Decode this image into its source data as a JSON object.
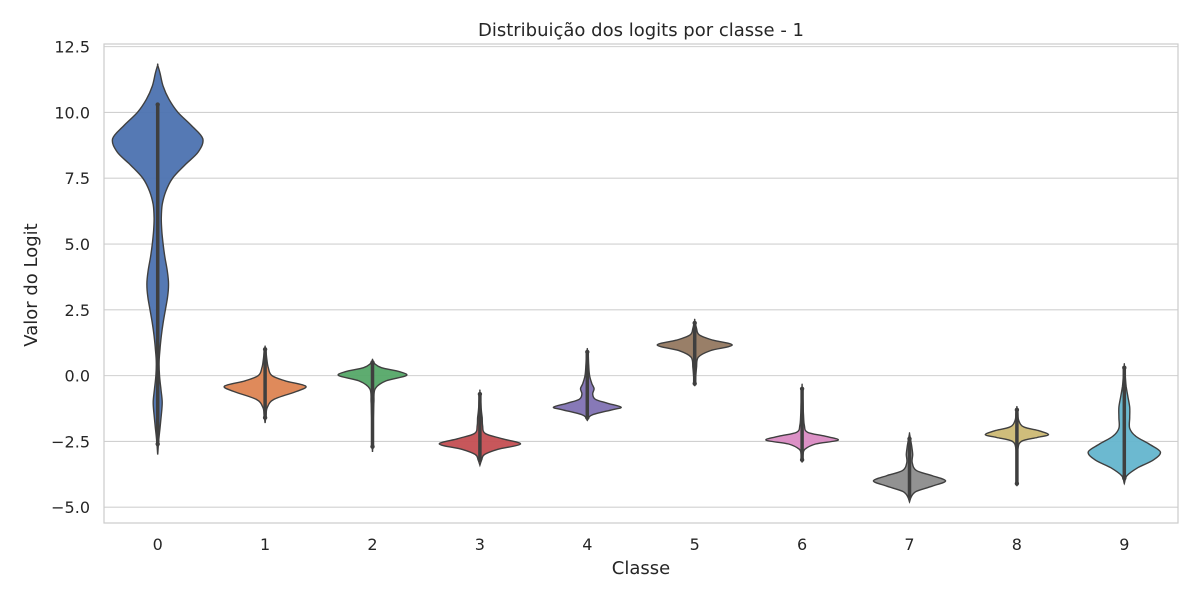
{
  "chart_data": {
    "type": "violin",
    "title": "Distribuição dos logits por classe - 1",
    "xlabel": "Classe",
    "ylabel": "Valor do Logit",
    "ylim": [
      -5.6,
      12.6
    ],
    "yticks": [
      -5.0,
      -2.5,
      0.0,
      2.5,
      5.0,
      7.5,
      10.0,
      12.5
    ],
    "ytick_labels": [
      "−5.0",
      "−2.5",
      "0.0",
      "2.5",
      "5.0",
      "7.5",
      "10.0",
      "12.5"
    ],
    "grid": true,
    "categories": [
      "0",
      "1",
      "2",
      "3",
      "4",
      "5",
      "6",
      "7",
      "8",
      "9"
    ],
    "colors": [
      "#4c72b0",
      "#dd8452",
      "#55a868",
      "#c44e52",
      "#8172b3",
      "#937860",
      "#da8bc3",
      "#8c8c8c",
      "#ccb974",
      "#64b5cd"
    ],
    "violins": [
      {
        "class": "0",
        "min": -3.0,
        "max": 11.8,
        "inner": [
          -2.6,
          10.3
        ],
        "density": [
          [
            -3.0,
            0
          ],
          [
            -2.5,
            0.02
          ],
          [
            -2.0,
            0.05
          ],
          [
            -1.5,
            0.08
          ],
          [
            -1.0,
            0.1
          ],
          [
            -0.5,
            0.07
          ],
          [
            0,
            0.04
          ],
          [
            0.5,
            0.03
          ],
          [
            1.0,
            0.05
          ],
          [
            1.5,
            0.08
          ],
          [
            2.0,
            0.12
          ],
          [
            2.5,
            0.17
          ],
          [
            3.0,
            0.22
          ],
          [
            3.5,
            0.24
          ],
          [
            4.0,
            0.21
          ],
          [
            4.5,
            0.16
          ],
          [
            5.0,
            0.12
          ],
          [
            5.5,
            0.09
          ],
          [
            6.0,
            0.08
          ],
          [
            6.5,
            0.1
          ],
          [
            7.0,
            0.18
          ],
          [
            7.5,
            0.33
          ],
          [
            8.0,
            0.6
          ],
          [
            8.5,
            0.9
          ],
          [
            9.0,
            1.0
          ],
          [
            9.5,
            0.75
          ],
          [
            10.0,
            0.45
          ],
          [
            10.5,
            0.25
          ],
          [
            11.0,
            0.12
          ],
          [
            11.5,
            0.05
          ],
          [
            11.8,
            0
          ]
        ]
      },
      {
        "class": "1",
        "min": -1.8,
        "max": 1.1,
        "inner": [
          -1.6,
          1.0
        ],
        "density": [
          [
            -1.8,
            0
          ],
          [
            -1.5,
            0.02
          ],
          [
            -1.2,
            0.05
          ],
          [
            -0.9,
            0.2
          ],
          [
            -0.6,
            0.7
          ],
          [
            -0.4,
            0.9
          ],
          [
            -0.2,
            0.45
          ],
          [
            0,
            0.15
          ],
          [
            0.3,
            0.07
          ],
          [
            0.6,
            0.04
          ],
          [
            0.9,
            0.02
          ],
          [
            1.1,
            0
          ]
        ]
      },
      {
        "class": "2",
        "min": -2.9,
        "max": 0.6,
        "inner": [
          -2.7,
          0.5
        ],
        "density": [
          [
            -2.9,
            0
          ],
          [
            -2.5,
            0.01
          ],
          [
            -2.0,
            0.01
          ],
          [
            -1.5,
            0.02
          ],
          [
            -1.0,
            0.03
          ],
          [
            -0.5,
            0.06
          ],
          [
            -0.2,
            0.3
          ],
          [
            0,
            0.75
          ],
          [
            0.15,
            0.6
          ],
          [
            0.3,
            0.2
          ],
          [
            0.45,
            0.05
          ],
          [
            0.6,
            0
          ]
        ]
      },
      {
        "class": "3",
        "min": -3.4,
        "max": -0.6,
        "inner": [
          -3.2,
          -0.7
        ],
        "density": [
          [
            -3.4,
            0
          ],
          [
            -3.2,
            0.04
          ],
          [
            -3.0,
            0.1
          ],
          [
            -2.8,
            0.4
          ],
          [
            -2.6,
            0.9
          ],
          [
            -2.4,
            0.5
          ],
          [
            -2.2,
            0.12
          ],
          [
            -1.9,
            0.06
          ],
          [
            -1.6,
            0.05
          ],
          [
            -1.3,
            0.03
          ],
          [
            -1.0,
            0.02
          ],
          [
            -0.6,
            0
          ]
        ]
      },
      {
        "class": "4",
        "min": -1.7,
        "max": 1.0,
        "inner": [
          -1.6,
          0.9
        ],
        "density": [
          [
            -1.7,
            0
          ],
          [
            -1.5,
            0.1
          ],
          [
            -1.3,
            0.55
          ],
          [
            -1.2,
            0.75
          ],
          [
            -1.05,
            0.45
          ],
          [
            -0.9,
            0.18
          ],
          [
            -0.7,
            0.12
          ],
          [
            -0.5,
            0.15
          ],
          [
            -0.3,
            0.1
          ],
          [
            0,
            0.05
          ],
          [
            0.4,
            0.03
          ],
          [
            0.8,
            0.02
          ],
          [
            1.0,
            0
          ]
        ]
      },
      {
        "class": "5",
        "min": -0.4,
        "max": 2.1,
        "inner": [
          -0.3,
          2.0
        ],
        "density": [
          [
            -0.4,
            0
          ],
          [
            -0.1,
            0.02
          ],
          [
            0.3,
            0.04
          ],
          [
            0.7,
            0.08
          ],
          [
            0.95,
            0.35
          ],
          [
            1.1,
            0.75
          ],
          [
            1.2,
            0.8
          ],
          [
            1.35,
            0.4
          ],
          [
            1.55,
            0.1
          ],
          [
            1.8,
            0.04
          ],
          [
            2.1,
            0
          ]
        ]
      },
      {
        "class": "6",
        "min": -3.3,
        "max": -0.4,
        "inner": [
          -3.2,
          -0.5
        ],
        "density": [
          [
            -3.3,
            0
          ],
          [
            -3.0,
            0.02
          ],
          [
            -2.8,
            0.06
          ],
          [
            -2.6,
            0.3
          ],
          [
            -2.45,
            0.8
          ],
          [
            -2.3,
            0.5
          ],
          [
            -2.15,
            0.12
          ],
          [
            -1.9,
            0.05
          ],
          [
            -1.5,
            0.03
          ],
          [
            -1.0,
            0.02
          ],
          [
            -0.4,
            0
          ]
        ]
      },
      {
        "class": "7",
        "min": -4.8,
        "max": -2.2,
        "inner": [
          -4.6,
          -2.4
        ],
        "density": [
          [
            -4.8,
            0
          ],
          [
            -4.6,
            0.04
          ],
          [
            -4.4,
            0.15
          ],
          [
            -4.2,
            0.5
          ],
          [
            -4.0,
            0.8
          ],
          [
            -3.8,
            0.5
          ],
          [
            -3.6,
            0.15
          ],
          [
            -3.3,
            0.06
          ],
          [
            -3.0,
            0.07
          ],
          [
            -2.7,
            0.05
          ],
          [
            -2.4,
            0.02
          ],
          [
            -2.2,
            0
          ]
        ]
      },
      {
        "class": "8",
        "min": -4.2,
        "max": -1.2,
        "inner": [
          -4.1,
          -1.3
        ],
        "density": [
          [
            -4.2,
            0
          ],
          [
            -3.8,
            0.01
          ],
          [
            -3.3,
            0.01
          ],
          [
            -2.8,
            0.02
          ],
          [
            -2.5,
            0.1
          ],
          [
            -2.35,
            0.45
          ],
          [
            -2.25,
            0.7
          ],
          [
            -2.1,
            0.5
          ],
          [
            -1.95,
            0.15
          ],
          [
            -1.7,
            0.04
          ],
          [
            -1.4,
            0.02
          ],
          [
            -1.2,
            0
          ]
        ]
      },
      {
        "class": "9",
        "min": -4.1,
        "max": 0.4,
        "inner": [
          -3.9,
          0.3
        ],
        "density": [
          [
            -4.1,
            0
          ],
          [
            -3.8,
            0.06
          ],
          [
            -3.5,
            0.3
          ],
          [
            -3.2,
            0.65
          ],
          [
            -2.9,
            0.8
          ],
          [
            -2.6,
            0.55
          ],
          [
            -2.3,
            0.25
          ],
          [
            -2.0,
            0.12
          ],
          [
            -1.6,
            0.12
          ],
          [
            -1.2,
            0.12
          ],
          [
            -0.8,
            0.08
          ],
          [
            -0.4,
            0.04
          ],
          [
            0,
            0.02
          ],
          [
            0.4,
            0
          ]
        ]
      }
    ]
  }
}
